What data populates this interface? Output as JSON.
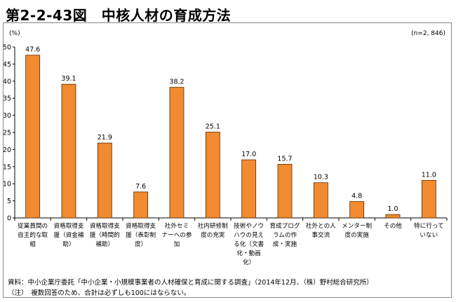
{
  "figure_title": "第2-2-43図　中核人材の育成方法",
  "chart_data": {
    "type": "bar",
    "title": "第2-2-43図　中核人材の育成方法",
    "unit_label": "(%)",
    "n_label": "(n=2, 846)",
    "xlabel": "",
    "ylabel": "",
    "ylim": [
      0,
      50
    ],
    "yticks": [
      0,
      5,
      10,
      15,
      20,
      25,
      30,
      35,
      40,
      45,
      50
    ],
    "grid": false,
    "bar_color": "#F28A30",
    "categories": [
      "従業員間の自主的な取組",
      "資格取得支援（資金補助）",
      "資格取得支援（時間的補助）",
      "資格取得支援（表彰制度）",
      "社外セミナーへの参加",
      "社内研修制度の充実",
      "技術やノウハウの見える化（文書化・動画化）",
      "育成プログラムの作成・実施",
      "社外との人事交流",
      "メンター制度の実施",
      "その他",
      "特に行っていない"
    ],
    "category_lines": [
      [
        "従業員間の",
        "自主的な取",
        "組"
      ],
      [
        "資格取得支",
        "援（資金補",
        "助）"
      ],
      [
        "資格取得支",
        "援（時間的",
        "補助）"
      ],
      [
        "資格取得支",
        "援（表彰制",
        "度）"
      ],
      [
        "社外セミ",
        "ナーへの参",
        "加"
      ],
      [
        "社内研修制",
        "度の充実"
      ],
      [
        "技術やノウ",
        "ハウの見え",
        "る化（文書",
        "化・動画",
        "化）"
      ],
      [
        "育成プログ",
        "ラムの作",
        "成・実施"
      ],
      [
        "社外との人",
        "事交流"
      ],
      [
        "メンター制",
        "度の実施"
      ],
      [
        "その他"
      ],
      [
        "特に行って",
        "いない"
      ]
    ],
    "values": [
      47.6,
      39.1,
      21.9,
      7.6,
      38.2,
      25.1,
      17.0,
      15.7,
      10.3,
      4.8,
      1.0,
      11.0
    ],
    "value_labels": [
      "47.6",
      "39.1",
      "21.9",
      "7.6",
      "38.2",
      "25.1",
      "17.0",
      "15.7",
      "10.3",
      "4.8",
      "1.0",
      "11.0"
    ]
  },
  "footnotes": {
    "source": "資料：中小企業庁委託「中小企業・小規模事業者の人材確保と育成に関する調査」（2014年12月、（株）野村総合研究所）",
    "note": "（注）　複数回答のため、合計は必ずしも100にはならない。"
  }
}
